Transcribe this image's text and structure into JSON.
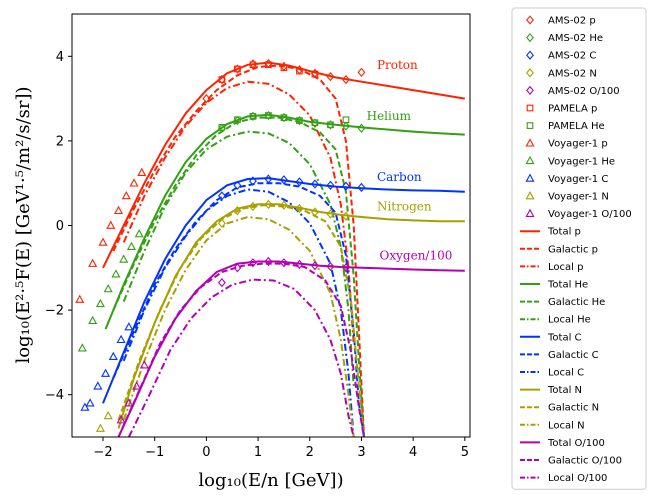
{
  "chart_data": {
    "type": "line",
    "xlabel": "log₁₀(E/n [GeV])",
    "ylabel": "log₁₀(E²·⁵F(E) [GeV¹·⁵/m²/s/sr])",
    "xlim": [
      -2.6,
      5.1
    ],
    "ylim": [
      -5,
      5
    ],
    "xticks": [
      -2,
      -1,
      0,
      1,
      2,
      3,
      4,
      5
    ],
    "xtick_labels": [
      "−2",
      "−1",
      "0",
      "1",
      "2",
      "3",
      "4",
      "5"
    ],
    "yticks": [
      4,
      2,
      0,
      -2,
      -4
    ],
    "ytick_labels": [
      "4",
      "2",
      "0",
      "−2",
      "−4"
    ],
    "legend_position": "outside-right",
    "annotations": [
      {
        "text": "Proton",
        "x": 3.3,
        "y": 3.7,
        "color": "#ff2200"
      },
      {
        "text": "Helium",
        "x": 3.1,
        "y": 2.5,
        "color": "#33a013"
      },
      {
        "text": "Carbon",
        "x": 3.3,
        "y": 1.05,
        "color": "#0033ff"
      },
      {
        "text": "Nitrogen",
        "x": 3.3,
        "y": 0.35,
        "color": "#a8a000"
      },
      {
        "text": "Oxygen/100",
        "x": 3.35,
        "y": -0.8,
        "color": "#b400b4"
      }
    ],
    "species": [
      {
        "name": "p",
        "color": "#ff2200",
        "total": {
          "x": [
            -2.0,
            -1.6,
            -1.2,
            -0.8,
            -0.4,
            0.0,
            0.4,
            0.8,
            1.2,
            1.6,
            2.0,
            2.5,
            3.0,
            3.5,
            4.0,
            4.5,
            5.0
          ],
          "y": [
            -1.0,
            0.0,
            1.0,
            1.9,
            2.65,
            3.2,
            3.6,
            3.8,
            3.85,
            3.78,
            3.65,
            3.5,
            3.4,
            3.3,
            3.2,
            3.1,
            3.0
          ]
        },
        "galactic": {
          "x": [
            -1.8,
            -1.4,
            -1.0,
            -0.6,
            -0.2,
            0.2,
            0.6,
            1.0,
            1.4,
            1.8,
            2.2,
            2.5,
            2.7,
            2.85,
            2.95,
            3.05
          ],
          "y": [
            -0.6,
            0.4,
            1.3,
            2.1,
            2.7,
            3.2,
            3.55,
            3.75,
            3.78,
            3.7,
            3.45,
            3.0,
            2.0,
            0.0,
            -2.5,
            -5.0
          ]
        },
        "local": {
          "x": [
            -1.6,
            -1.2,
            -0.8,
            -0.4,
            0.0,
            0.4,
            0.8,
            1.2,
            1.6,
            2.0,
            2.4,
            2.6,
            2.75,
            2.85
          ],
          "y": [
            -0.4,
            0.7,
            1.6,
            2.35,
            2.9,
            3.25,
            3.4,
            3.35,
            3.1,
            2.6,
            1.6,
            0.5,
            -1.0,
            -2.8
          ]
        },
        "ams": {
          "x": [
            0.0,
            0.3,
            0.6,
            0.9,
            1.2,
            1.5,
            1.8,
            2.1,
            2.4,
            2.7,
            3.0
          ],
          "y": [
            3.0,
            3.45,
            3.7,
            3.82,
            3.83,
            3.76,
            3.68,
            3.6,
            3.52,
            3.45,
            3.62
          ]
        },
        "pamela": {
          "x": [
            0.3,
            0.6,
            0.9,
            1.2,
            1.5,
            1.8,
            2.1
          ],
          "y": [
            3.45,
            3.7,
            3.8,
            3.8,
            3.73,
            3.65,
            3.58
          ]
        },
        "voyager": {
          "x": [
            -2.45,
            -2.2,
            -2.0,
            -1.85,
            -1.7,
            -1.55,
            -1.4,
            -1.25
          ],
          "y": [
            -1.75,
            -0.9,
            -0.4,
            0.0,
            0.35,
            0.7,
            1.0,
            1.25
          ]
        }
      },
      {
        "name": "He",
        "color": "#33a013",
        "total": {
          "x": [
            -1.95,
            -1.6,
            -1.2,
            -0.8,
            -0.4,
            0.0,
            0.4,
            0.8,
            1.2,
            1.6,
            2.0,
            2.5,
            3.0,
            3.5,
            4.0,
            4.5,
            5.0
          ],
          "y": [
            -2.45,
            -1.4,
            -0.3,
            0.7,
            1.5,
            2.05,
            2.4,
            2.58,
            2.62,
            2.55,
            2.45,
            2.38,
            2.32,
            2.27,
            2.22,
            2.18,
            2.15
          ]
        },
        "galactic": {
          "x": [
            -1.8,
            -1.4,
            -1.0,
            -0.6,
            -0.2,
            0.2,
            0.6,
            1.0,
            1.4,
            1.8,
            2.2,
            2.5,
            2.7,
            2.85,
            2.95,
            3.05
          ],
          "y": [
            -2.0,
            -0.9,
            0.1,
            0.95,
            1.65,
            2.15,
            2.45,
            2.55,
            2.55,
            2.45,
            2.2,
            1.8,
            0.8,
            -1.2,
            -3.2,
            -5.0
          ]
        },
        "local": {
          "x": [
            -1.6,
            -1.2,
            -0.8,
            -0.4,
            0.0,
            0.4,
            0.8,
            1.2,
            1.6,
            2.0,
            2.4,
            2.6,
            2.75,
            2.85
          ],
          "y": [
            -1.8,
            -0.6,
            0.45,
            1.25,
            1.8,
            2.1,
            2.22,
            2.18,
            1.95,
            1.45,
            0.5,
            -0.5,
            -2.0,
            -3.8
          ]
        },
        "ams": {
          "x": [
            0.3,
            0.6,
            0.9,
            1.2,
            1.5,
            1.8,
            2.1,
            2.4,
            2.7,
            3.0
          ],
          "y": [
            2.3,
            2.48,
            2.58,
            2.6,
            2.55,
            2.48,
            2.42,
            2.38,
            2.35,
            2.3
          ]
        },
        "pamela": {
          "x": [
            0.3,
            0.6,
            0.9,
            1.2,
            1.5,
            1.8,
            2.1,
            2.4,
            2.7
          ],
          "y": [
            2.32,
            2.5,
            2.58,
            2.6,
            2.55,
            2.48,
            2.43,
            2.38,
            2.5
          ]
        },
        "voyager": {
          "x": [
            -2.4,
            -2.2,
            -2.05,
            -1.9,
            -1.75,
            -1.6,
            -1.45,
            -1.3
          ],
          "y": [
            -2.9,
            -2.25,
            -1.85,
            -1.5,
            -1.15,
            -0.8,
            -0.5,
            -0.2
          ]
        }
      },
      {
        "name": "C",
        "color": "#0033ff",
        "total": {
          "x": [
            -2.0,
            -1.6,
            -1.2,
            -0.8,
            -0.4,
            0.0,
            0.4,
            0.8,
            1.2,
            1.6,
            2.0,
            2.5,
            3.0,
            3.5,
            4.0,
            4.5,
            5.0
          ],
          "y": [
            -4.2,
            -3.0,
            -1.8,
            -0.8,
            0.0,
            0.6,
            0.95,
            1.1,
            1.12,
            1.05,
            0.98,
            0.92,
            0.88,
            0.85,
            0.83,
            0.82,
            0.8
          ]
        },
        "galactic": {
          "x": [
            -1.8,
            -1.4,
            -1.0,
            -0.6,
            -0.2,
            0.2,
            0.6,
            1.0,
            1.4,
            1.8,
            2.2,
            2.5,
            2.7,
            2.85,
            2.95,
            3.05
          ],
          "y": [
            -3.6,
            -2.5,
            -1.4,
            -0.55,
            0.1,
            0.6,
            0.9,
            1.0,
            1.0,
            0.92,
            0.7,
            0.3,
            -0.7,
            -2.5,
            -4.2,
            -5.0
          ]
        },
        "local": {
          "x": [
            -1.6,
            -1.2,
            -0.8,
            -0.4,
            0.0,
            0.4,
            0.8,
            1.2,
            1.6,
            2.0,
            2.4,
            2.6,
            2.75,
            2.85
          ],
          "y": [
            -3.2,
            -2.0,
            -1.0,
            -0.25,
            0.35,
            0.7,
            0.85,
            0.8,
            0.55,
            0.05,
            -0.9,
            -2.0,
            -3.5,
            -5.0
          ]
        },
        "ams": {
          "x": [
            0.3,
            0.6,
            0.9,
            1.2,
            1.5,
            1.8,
            2.1,
            2.4,
            2.7,
            3.0
          ],
          "y": [
            0.7,
            0.95,
            1.05,
            1.1,
            1.08,
            1.03,
            0.98,
            0.95,
            0.93,
            0.9
          ]
        },
        "voyager": {
          "x": [
            -2.35,
            -2.25,
            -2.1,
            -1.95,
            -1.8,
            -1.65,
            -1.5
          ],
          "y": [
            -4.3,
            -4.2,
            -3.8,
            -3.5,
            -3.1,
            -2.7,
            -2.4
          ]
        }
      },
      {
        "name": "N",
        "color": "#a8a000",
        "total": {
          "x": [
            -1.7,
            -1.4,
            -1.0,
            -0.6,
            -0.2,
            0.2,
            0.6,
            1.0,
            1.4,
            1.8,
            2.2,
            2.6,
            3.0,
            3.5,
            4.0,
            4.5,
            5.0
          ],
          "y": [
            -4.8,
            -3.6,
            -2.3,
            -1.2,
            -0.4,
            0.1,
            0.4,
            0.5,
            0.5,
            0.42,
            0.32,
            0.25,
            0.2,
            0.15,
            0.12,
            0.1,
            0.1
          ]
        },
        "galactic": {
          "x": [
            -1.7,
            -1.3,
            -0.9,
            -0.5,
            -0.1,
            0.3,
            0.7,
            1.1,
            1.5,
            1.9,
            2.3,
            2.6,
            2.8,
            2.95,
            3.05
          ],
          "y": [
            -4.6,
            -3.2,
            -2.0,
            -1.0,
            -0.3,
            0.15,
            0.4,
            0.48,
            0.45,
            0.35,
            0.1,
            -0.5,
            -1.8,
            -3.8,
            -5.0
          ]
        },
        "local": {
          "x": [
            -1.6,
            -1.2,
            -0.8,
            -0.4,
            0.0,
            0.4,
            0.8,
            1.2,
            1.6,
            2.0,
            2.4,
            2.6,
            2.75,
            2.85
          ],
          "y": [
            -4.6,
            -3.2,
            -2.0,
            -1.05,
            -0.35,
            0.05,
            0.2,
            0.15,
            -0.1,
            -0.6,
            -1.6,
            -2.7,
            -4.0,
            -5.0
          ]
        },
        "ams": {
          "x": [
            0.3,
            0.6,
            0.9,
            1.2,
            1.5,
            1.8,
            2.1,
            2.4,
            2.7
          ],
          "y": [
            0.05,
            0.35,
            0.45,
            0.5,
            0.48,
            0.4,
            0.32,
            0.27,
            0.22
          ]
        },
        "voyager": {
          "x": [
            -2.05,
            -1.9
          ],
          "y": [
            -4.8,
            -4.5
          ]
        }
      },
      {
        "name": "O/100",
        "color": "#b400b4",
        "total": {
          "x": [
            -1.7,
            -1.4,
            -1.0,
            -0.6,
            -0.2,
            0.2,
            0.6,
            1.0,
            1.4,
            1.8,
            2.2,
            2.6,
            3.0,
            3.5,
            4.0,
            4.5,
            5.0
          ],
          "y": [
            -5.0,
            -4.2,
            -3.1,
            -2.2,
            -1.55,
            -1.1,
            -0.9,
            -0.85,
            -0.85,
            -0.9,
            -0.95,
            -0.98,
            -1.0,
            -1.02,
            -1.04,
            -1.06,
            -1.07
          ]
        },
        "galactic": {
          "x": [
            -1.7,
            -1.3,
            -0.9,
            -0.5,
            -0.1,
            0.3,
            0.7,
            1.1,
            1.5,
            1.9,
            2.3,
            2.6,
            2.8,
            2.95,
            3.05
          ],
          "y": [
            -5.0,
            -3.9,
            -2.8,
            -2.0,
            -1.45,
            -1.1,
            -0.95,
            -0.9,
            -0.9,
            -0.98,
            -1.3,
            -1.9,
            -3.0,
            -4.3,
            -5.0
          ]
        },
        "local": {
          "x": [
            -1.5,
            -1.1,
            -0.7,
            -0.3,
            0.1,
            0.5,
            0.9,
            1.3,
            1.7,
            2.1,
            2.4,
            2.6,
            2.75,
            2.85
          ],
          "y": [
            -5.0,
            -4.0,
            -2.95,
            -2.2,
            -1.7,
            -1.4,
            -1.28,
            -1.3,
            -1.5,
            -2.0,
            -2.7,
            -3.5,
            -4.5,
            -5.0
          ]
        },
        "ams": {
          "x": [
            0.3,
            0.6,
            0.9,
            1.2,
            1.5,
            1.8,
            2.1,
            2.4,
            2.7
          ],
          "y": [
            -1.35,
            -1.0,
            -0.88,
            -0.85,
            -0.88,
            -0.92,
            -0.95,
            -0.97,
            -1.0
          ]
        },
        "voyager": {
          "x": [
            -1.65,
            -1.5,
            -1.35,
            -1.2
          ],
          "y": [
            -4.6,
            -4.2,
            -3.8,
            -3.3
          ]
        }
      }
    ],
    "legend": [
      {
        "label": "AMS-02 p",
        "marker": "diamond",
        "color": "#ff2200"
      },
      {
        "label": "AMS-02 He",
        "marker": "diamond",
        "color": "#33a013"
      },
      {
        "label": "AMS-02 C",
        "marker": "diamond",
        "color": "#0033ff"
      },
      {
        "label": "AMS-02 N",
        "marker": "diamond",
        "color": "#a8a000"
      },
      {
        "label": "AMS-02 O/100",
        "marker": "diamond",
        "color": "#b400b4"
      },
      {
        "label": "PAMELA p",
        "marker": "square",
        "color": "#ff2200"
      },
      {
        "label": "PAMELA He",
        "marker": "square",
        "color": "#33a013"
      },
      {
        "label": "Voyager-1 p",
        "marker": "triangle",
        "color": "#ff2200"
      },
      {
        "label": "Voyager-1 He",
        "marker": "triangle",
        "color": "#33a013"
      },
      {
        "label": "Voyager-1 C",
        "marker": "triangle",
        "color": "#0033ff"
      },
      {
        "label": "Voyager-1 N",
        "marker": "triangle",
        "color": "#a8a000"
      },
      {
        "label": "Voyager-1 O/100",
        "marker": "triangle",
        "color": "#b400b4"
      },
      {
        "label": "Total p",
        "marker": "solid",
        "color": "#ff2200"
      },
      {
        "label": "Galactic p",
        "marker": "dashed",
        "color": "#ff2200"
      },
      {
        "label": "Local p",
        "marker": "dashdot",
        "color": "#ff2200"
      },
      {
        "label": "Total He",
        "marker": "solid",
        "color": "#33a013"
      },
      {
        "label": "Galactic He",
        "marker": "dashed",
        "color": "#33a013"
      },
      {
        "label": "Local He",
        "marker": "dashdot",
        "color": "#33a013"
      },
      {
        "label": "Total C",
        "marker": "solid",
        "color": "#0033ff"
      },
      {
        "label": "Galactic C",
        "marker": "dashed",
        "color": "#0033ff"
      },
      {
        "label": "Local C",
        "marker": "dashdot",
        "color": "#0033ff"
      },
      {
        "label": "Total N",
        "marker": "solid",
        "color": "#a8a000"
      },
      {
        "label": "Galactic N",
        "marker": "dashed",
        "color": "#a8a000"
      },
      {
        "label": "Local N",
        "marker": "dashdot",
        "color": "#a8a000"
      },
      {
        "label": "Total O/100",
        "marker": "solid",
        "color": "#b400b4"
      },
      {
        "label": "Galactic O/100",
        "marker": "dashed",
        "color": "#b400b4"
      },
      {
        "label": "Local O/100",
        "marker": "dashdot",
        "color": "#b400b4"
      }
    ]
  }
}
